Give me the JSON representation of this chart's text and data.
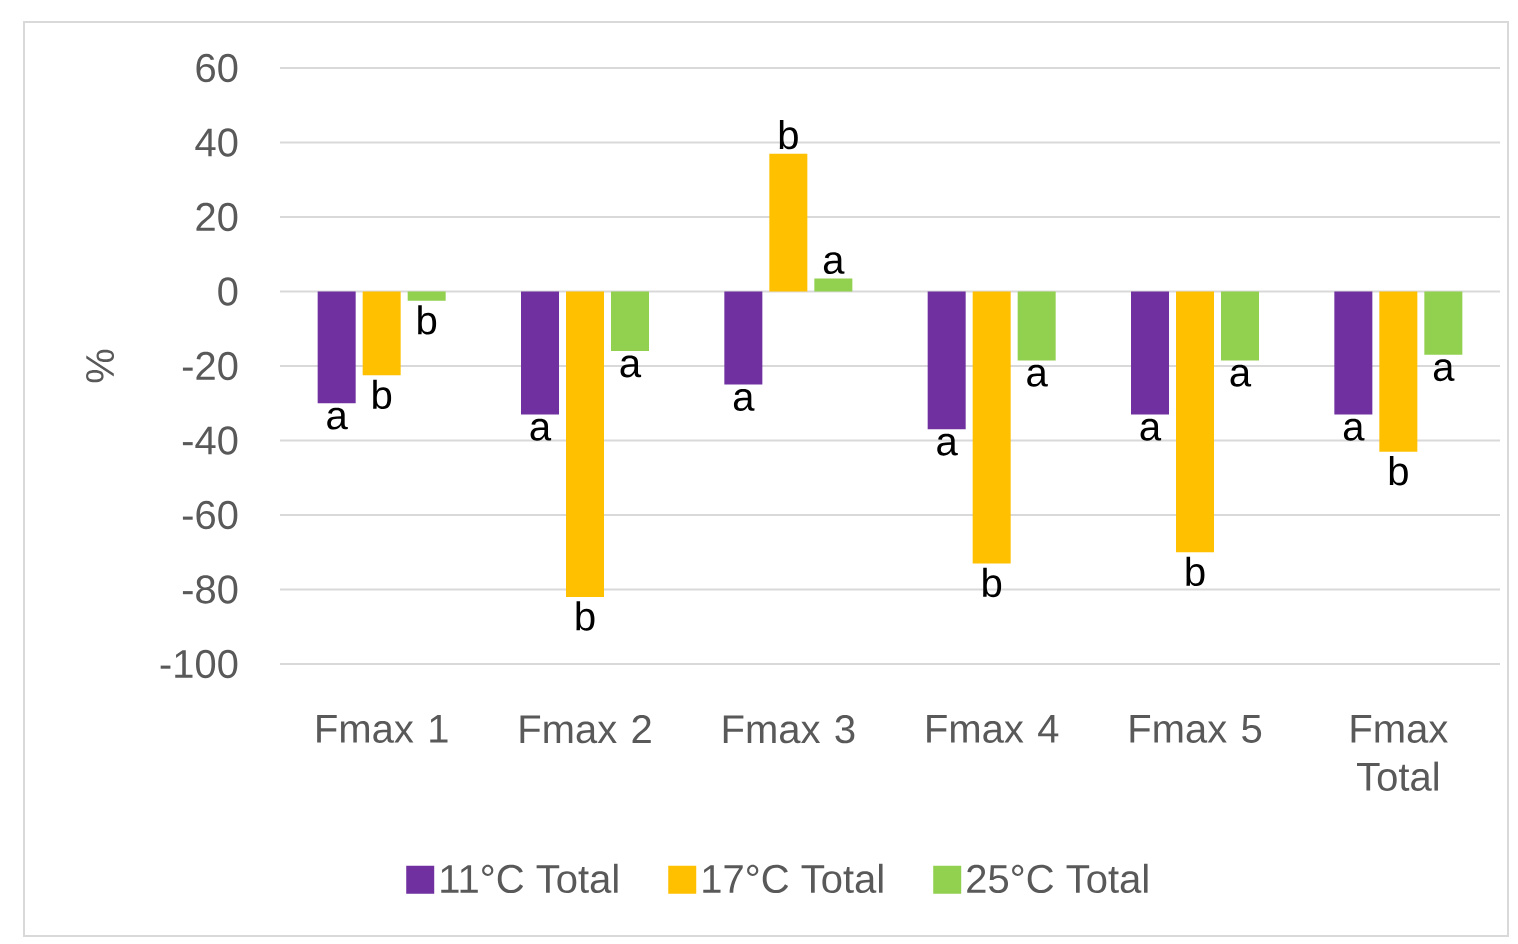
{
  "chart_data": {
    "type": "bar",
    "ylabel": "%",
    "categories": [
      "Fmax 1",
      "Fmax 2",
      "Fmax 3",
      "Fmax 4",
      "Fmax 5",
      "Fmax Total"
    ],
    "series": [
      {
        "name": "11°C Total",
        "color": "#7030a0",
        "values": [
          -30,
          -33,
          -25,
          -37,
          -33,
          -33
        ],
        "value_labels": [
          "a",
          "a",
          "a",
          "a",
          "a",
          "a"
        ]
      },
      {
        "name": "17°C Total",
        "color": "#ffc000",
        "values": [
          -22.5,
          -82,
          37,
          -73,
          -70,
          -43
        ],
        "value_labels": [
          "b",
          "b",
          "b",
          "b",
          "b",
          "b"
        ]
      },
      {
        "name": "25°C Total",
        "color": "#92d050",
        "values": [
          -2.5,
          -16,
          3.5,
          -18.5,
          -18.5,
          -17
        ],
        "value_labels": [
          "b",
          "a",
          "a",
          "a",
          "a",
          "a"
        ]
      }
    ],
    "ylim": [
      -100,
      60
    ],
    "yticks": [
      -100,
      -80,
      -60,
      -40,
      -20,
      0,
      20,
      40,
      60
    ],
    "grid": "y",
    "legend": "bottom"
  }
}
